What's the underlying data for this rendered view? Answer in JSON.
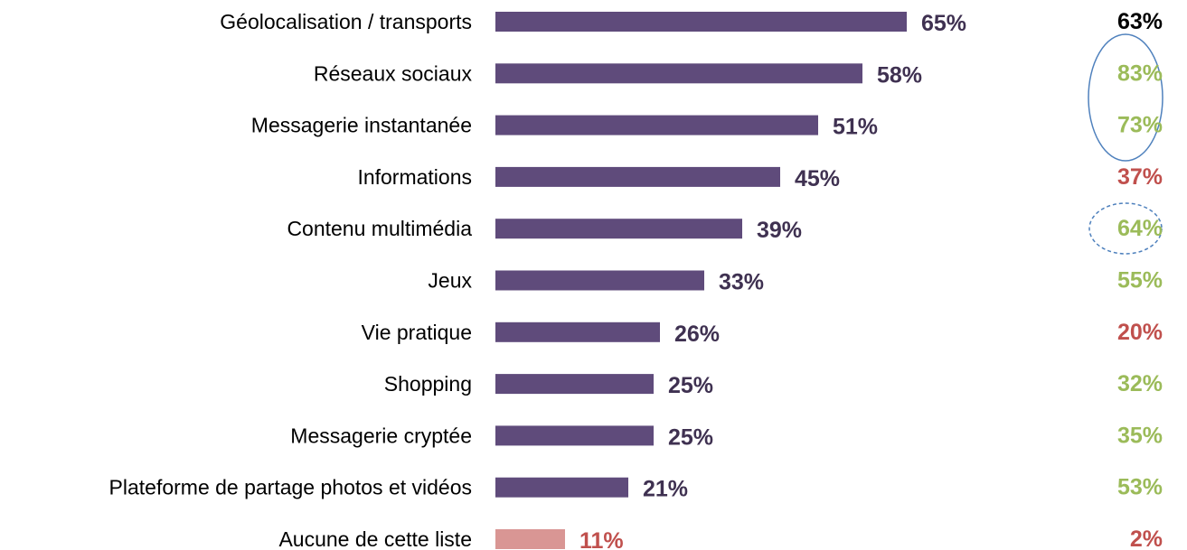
{
  "chart_data": {
    "type": "bar",
    "orientation": "horizontal",
    "categories": [
      "Géolocalisation / transports",
      "Réseaux sociaux",
      "Messagerie instantanée",
      "Informations",
      "Contenu multimédia",
      "Jeux",
      "Vie pratique",
      "Shopping",
      "Messagerie cryptée",
      "Plateforme de partage photos et vidéos",
      "Aucune de cette liste"
    ],
    "xlim": [
      0,
      100
    ],
    "series": [
      {
        "values": [
          65,
          58,
          51,
          45,
          39,
          33,
          26,
          25,
          25,
          21,
          11
        ],
        "value_labels": [
          "65%",
          "58%",
          "51%",
          "45%",
          "39%",
          "33%",
          "26%",
          "25%",
          "25%",
          "21%",
          "11%"
        ],
        "colors": [
          "#5f4b7b",
          "#5f4b7b",
          "#5f4b7b",
          "#5f4b7b",
          "#5f4b7b",
          "#5f4b7b",
          "#5f4b7b",
          "#5f4b7b",
          "#5f4b7b",
          "#5f4b7b",
          "#d99694"
        ],
        "label_colors": [
          "#3f3151",
          "#3f3151",
          "#3f3151",
          "#3f3151",
          "#3f3151",
          "#3f3151",
          "#3f3151",
          "#3f3151",
          "#3f3151",
          "#3f3151",
          "#c0504d"
        ]
      },
      {
        "values": [
          63,
          83,
          73,
          37,
          64,
          55,
          20,
          32,
          35,
          53,
          2
        ],
        "value_labels": [
          "63%",
          "83%",
          "73%",
          "37%",
          "64%",
          "55%",
          "20%",
          "32%",
          "35%",
          "53%",
          "2%"
        ],
        "label_colors": [
          "#000000",
          "#9bbb59",
          "#9bbb59",
          "#c0504d",
          "#9bbb59",
          "#9bbb59",
          "#c0504d",
          "#9bbb59",
          "#9bbb59",
          "#9bbb59",
          "#c0504d"
        ]
      }
    ]
  }
}
